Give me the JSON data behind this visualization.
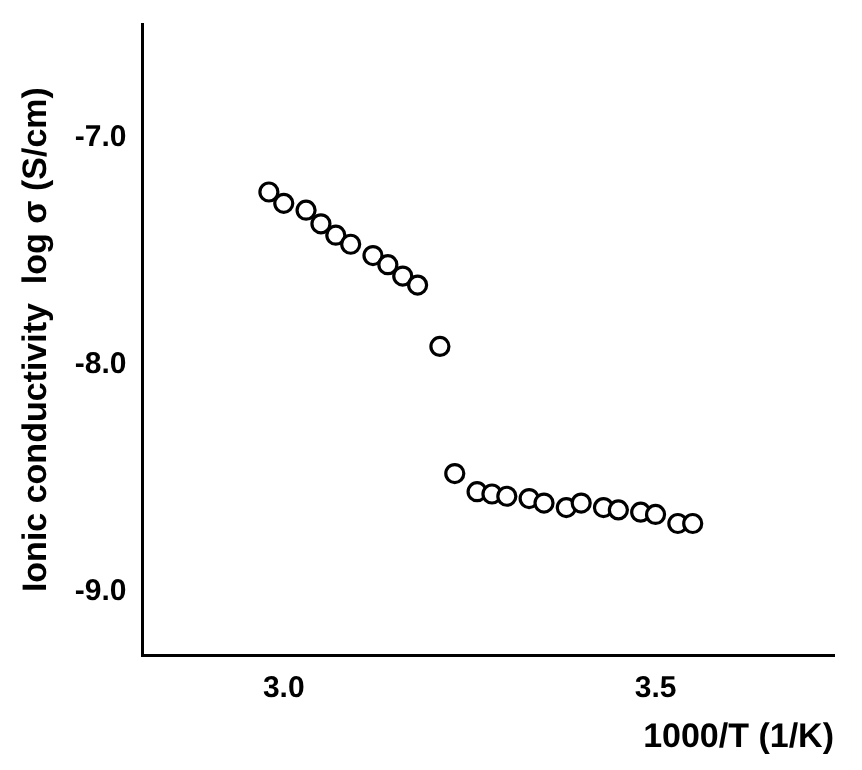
{
  "chart_data": {
    "type": "scatter",
    "xlabel": "1000/T (1/K)",
    "ylabel": "Ionic conductivity  log σ (S/cm)",
    "x": [
      2.98,
      3.0,
      3.03,
      3.05,
      3.07,
      3.09,
      3.12,
      3.14,
      3.16,
      3.18,
      3.21,
      3.23,
      3.26,
      3.28,
      3.3,
      3.33,
      3.35,
      3.38,
      3.4,
      3.43,
      3.45,
      3.48,
      3.5,
      3.53,
      3.55
    ],
    "series": [
      {
        "color": "#000000",
        "values": [
          -7.24,
          -7.29,
          -7.32,
          -7.38,
          -7.43,
          -7.47,
          -7.52,
          -7.56,
          -7.61,
          -7.65,
          -7.92,
          -8.48,
          -8.56,
          -8.57,
          -8.58,
          -8.59,
          -8.61,
          -8.63,
          -8.61,
          -8.63,
          -8.64,
          -8.65,
          -8.66,
          -8.7,
          -8.7
        ]
      }
    ],
    "xlim": [
      2.81,
      3.74
    ],
    "ylim": [
      -9.28,
      -6.5
    ],
    "xticks": [
      {
        "value": 3.0,
        "label": "3.0"
      },
      {
        "value": 3.5,
        "label": "3.5"
      }
    ],
    "yticks": [
      {
        "value": -9.0,
        "label": "-9.0"
      },
      {
        "value": -8.0,
        "label": "-8.0"
      },
      {
        "value": -7.0,
        "label": "-7.0"
      }
    ],
    "marker": "circle",
    "grid": false,
    "legend": false
  }
}
